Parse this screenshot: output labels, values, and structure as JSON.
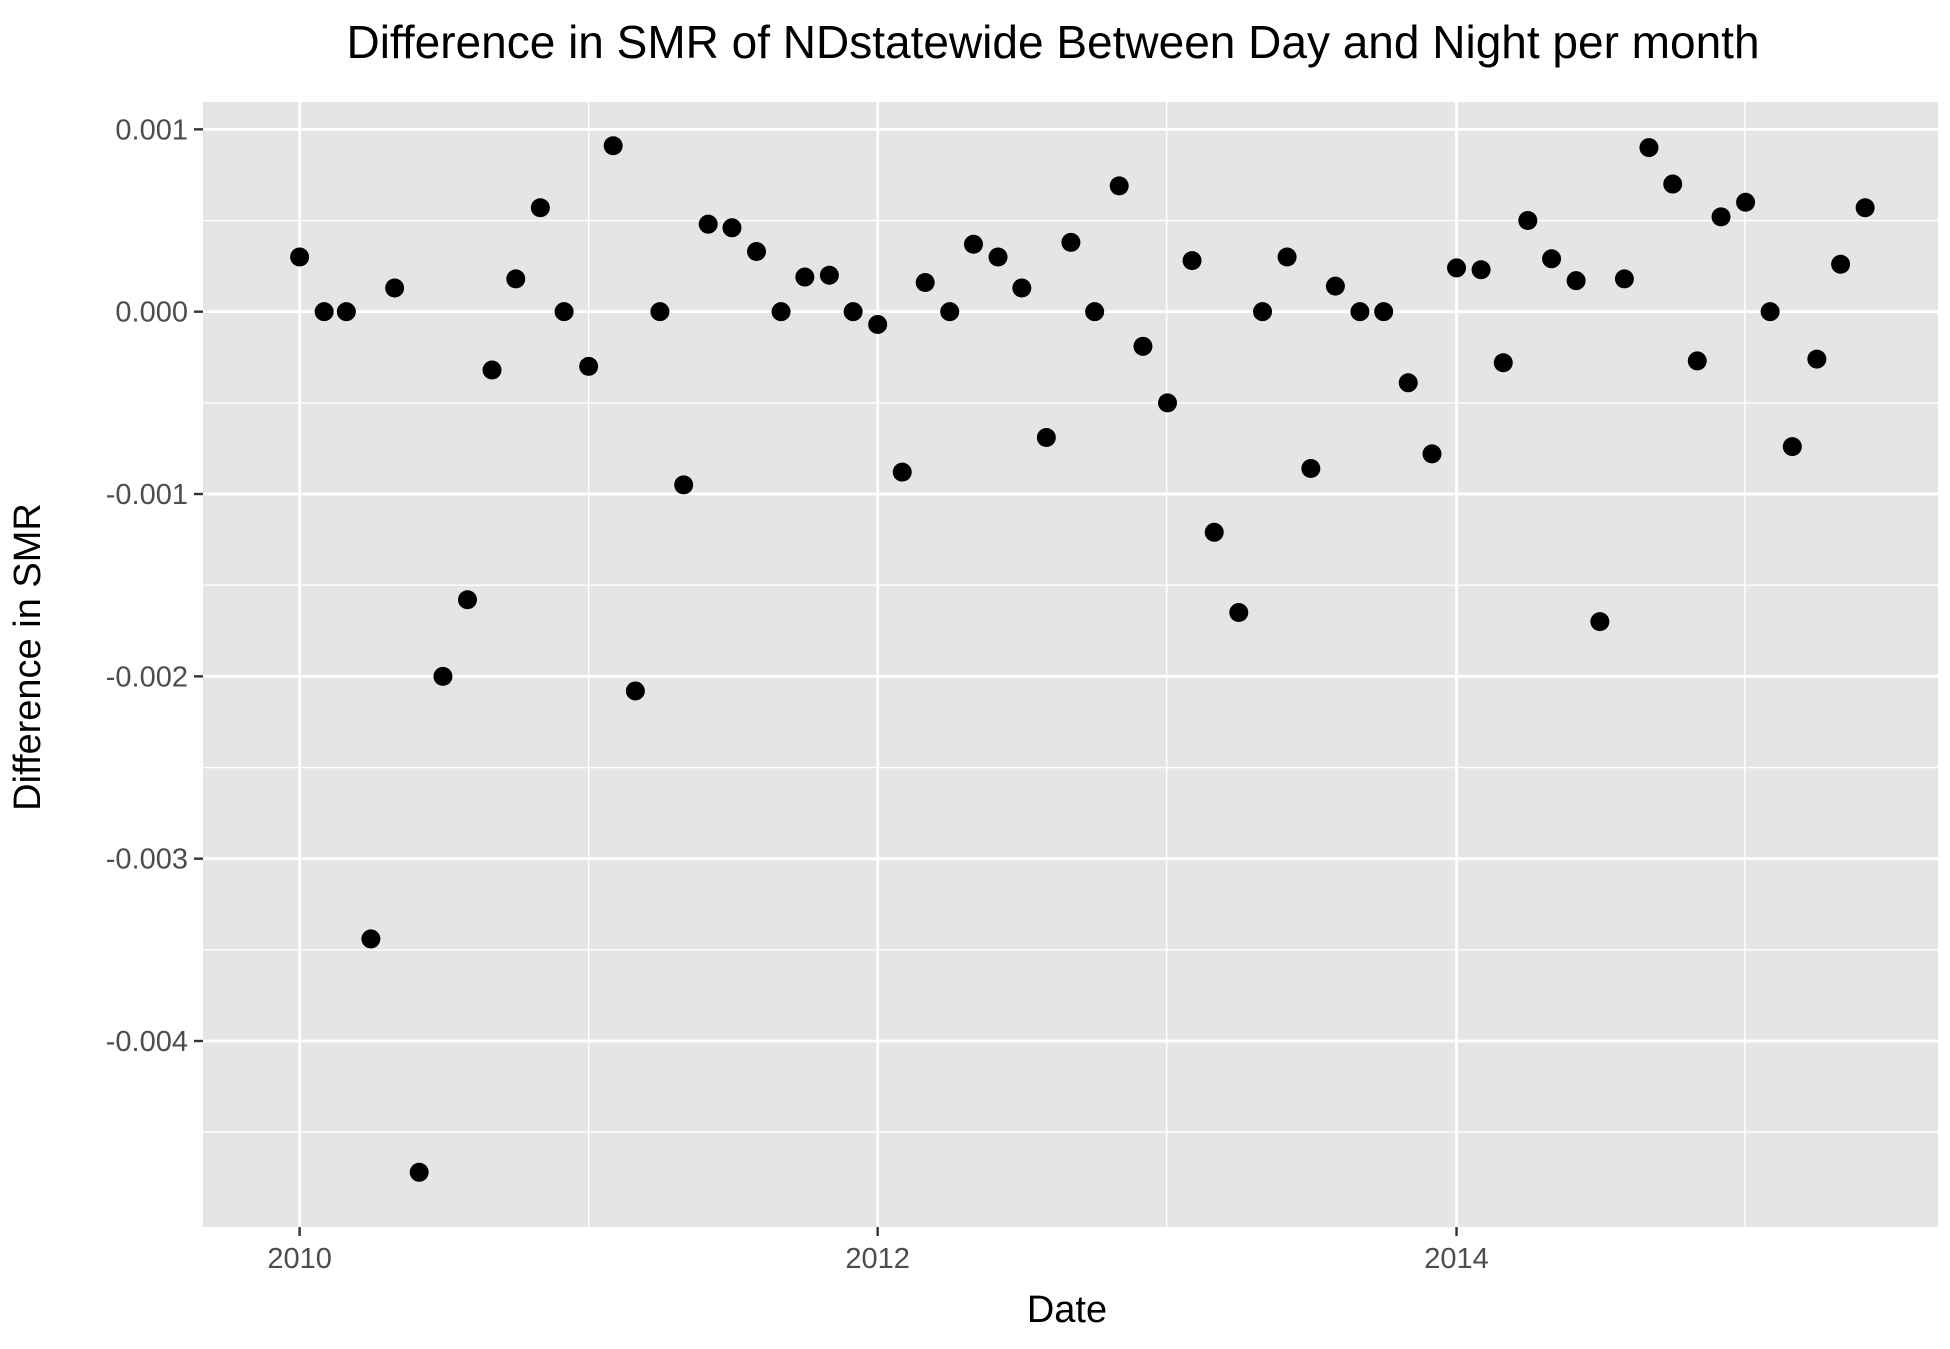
{
  "chart_data": {
    "type": "scatter",
    "title": "Difference in SMR of NDstatewide Between Day and Night per month",
    "xlabel": "Date",
    "ylabel": "Difference in SMR",
    "x_axis_type": "date",
    "xlim": [
      "2009-09-01",
      "2015-09-01"
    ],
    "ylim": [
      -0.00502,
      0.00115
    ],
    "x_ticks": [
      {
        "value": "2010-01-01",
        "label": "2010"
      },
      {
        "value": "2012-01-01",
        "label": "2012"
      },
      {
        "value": "2014-01-01",
        "label": "2014"
      }
    ],
    "y_ticks": [
      {
        "value": 0.001,
        "label": "0.001"
      },
      {
        "value": 0.0,
        "label": "0.000"
      },
      {
        "value": -0.001,
        "label": "-0.001"
      },
      {
        "value": -0.002,
        "label": "-0.002"
      },
      {
        "value": -0.003,
        "label": "-0.003"
      },
      {
        "value": -0.004,
        "label": "-0.004"
      }
    ],
    "grid": true,
    "legend": "none",
    "colors": {
      "panel": "#e5e5e5",
      "grid": "#ffffff",
      "point": "#000000",
      "tick": "#333333"
    },
    "points": [
      {
        "x": "2010-01-01",
        "y": 0.0003
      },
      {
        "x": "2010-02-01",
        "y": 0.0
      },
      {
        "x": "2010-03-01",
        "y": 0.0
      },
      {
        "x": "2010-04-01",
        "y": -0.00344
      },
      {
        "x": "2010-05-01",
        "y": 0.00013
      },
      {
        "x": "2010-06-01",
        "y": -0.00472
      },
      {
        "x": "2010-07-01",
        "y": -0.002
      },
      {
        "x": "2010-08-01",
        "y": -0.00158
      },
      {
        "x": "2010-09-01",
        "y": -0.00032
      },
      {
        "x": "2010-10-01",
        "y": 0.00018
      },
      {
        "x": "2010-11-01",
        "y": 0.00057
      },
      {
        "x": "2010-12-01",
        "y": 0.0
      },
      {
        "x": "2011-01-01",
        "y": -0.0003
      },
      {
        "x": "2011-02-01",
        "y": 0.00091
      },
      {
        "x": "2011-03-01",
        "y": -0.00208
      },
      {
        "x": "2011-04-01",
        "y": 0.0
      },
      {
        "x": "2011-05-01",
        "y": -0.00095
      },
      {
        "x": "2011-06-01",
        "y": 0.00048
      },
      {
        "x": "2011-07-01",
        "y": 0.00046
      },
      {
        "x": "2011-08-01",
        "y": 0.00033
      },
      {
        "x": "2011-09-01",
        "y": 0.0
      },
      {
        "x": "2011-10-01",
        "y": 0.00019
      },
      {
        "x": "2011-11-01",
        "y": 0.0002
      },
      {
        "x": "2011-12-01",
        "y": 0.0
      },
      {
        "x": "2012-01-01",
        "y": -7e-05
      },
      {
        "x": "2012-02-01",
        "y": -0.00088
      },
      {
        "x": "2012-03-01",
        "y": 0.00016
      },
      {
        "x": "2012-04-01",
        "y": 0.0
      },
      {
        "x": "2012-05-01",
        "y": 0.00037
      },
      {
        "x": "2012-06-01",
        "y": 0.0003
      },
      {
        "x": "2012-07-01",
        "y": 0.00013
      },
      {
        "x": "2012-08-01",
        "y": -0.00069
      },
      {
        "x": "2012-09-01",
        "y": 0.00038
      },
      {
        "x": "2012-10-01",
        "y": 0.0
      },
      {
        "x": "2012-11-01",
        "y": 0.00069
      },
      {
        "x": "2012-12-01",
        "y": -0.00019
      },
      {
        "x": "2013-01-01",
        "y": -0.0005
      },
      {
        "x": "2013-02-01",
        "y": 0.00028
      },
      {
        "x": "2013-03-01",
        "y": -0.00121
      },
      {
        "x": "2013-04-01",
        "y": -0.00165
      },
      {
        "x": "2013-05-01",
        "y": 0.0
      },
      {
        "x": "2013-06-01",
        "y": 0.0003
      },
      {
        "x": "2013-07-01",
        "y": -0.00086
      },
      {
        "x": "2013-08-01",
        "y": 0.00014
      },
      {
        "x": "2013-09-01",
        "y": 0.0
      },
      {
        "x": "2013-10-01",
        "y": 0.0
      },
      {
        "x": "2013-11-01",
        "y": -0.00039
      },
      {
        "x": "2013-12-01",
        "y": -0.00078
      },
      {
        "x": "2014-01-01",
        "y": 0.00024
      },
      {
        "x": "2014-02-01",
        "y": 0.00023
      },
      {
        "x": "2014-03-01",
        "y": -0.00028
      },
      {
        "x": "2014-04-01",
        "y": 0.0005
      },
      {
        "x": "2014-05-01",
        "y": 0.00029
      },
      {
        "x": "2014-06-01",
        "y": 0.00017
      },
      {
        "x": "2014-07-01",
        "y": -0.0017
      },
      {
        "x": "2014-08-01",
        "y": 0.00018
      },
      {
        "x": "2014-09-01",
        "y": 0.0009
      },
      {
        "x": "2014-10-01",
        "y": 0.0007
      },
      {
        "x": "2014-11-01",
        "y": -0.00027
      },
      {
        "x": "2014-12-01",
        "y": 0.00052
      },
      {
        "x": "2015-01-01",
        "y": 0.0006
      },
      {
        "x": "2015-02-01",
        "y": 0.0
      },
      {
        "x": "2015-03-01",
        "y": -0.00074
      },
      {
        "x": "2015-04-01",
        "y": -0.00026
      },
      {
        "x": "2015-05-01",
        "y": 0.00026
      },
      {
        "x": "2015-06-01",
        "y": 0.00057
      }
    ]
  }
}
